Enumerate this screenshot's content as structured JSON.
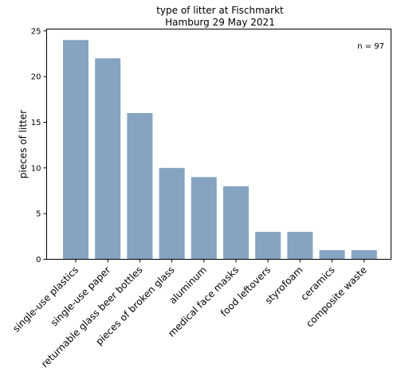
{
  "chart_data": {
    "type": "bar",
    "title": "type of litter at Fischmarkt\nHamburg 29 May 2021",
    "xlabel": "",
    "ylabel": "pieces of litter",
    "annotation": "n = 97",
    "categories": [
      "single-use plastics",
      "single-use paper",
      "returnable glass beer bottles",
      "pieces of broken glass",
      "aluminum",
      "medical face masks",
      "food leftovers",
      "styrofoam",
      "ceramics",
      "composite waste"
    ],
    "values": [
      24,
      22,
      16,
      10,
      9,
      8,
      3,
      3,
      1,
      1
    ],
    "ylim": [
      0,
      25.2
    ],
    "yticks": [
      0,
      5,
      10,
      15,
      20,
      25
    ],
    "grid": false,
    "bar_color": "#84a4c1"
  }
}
